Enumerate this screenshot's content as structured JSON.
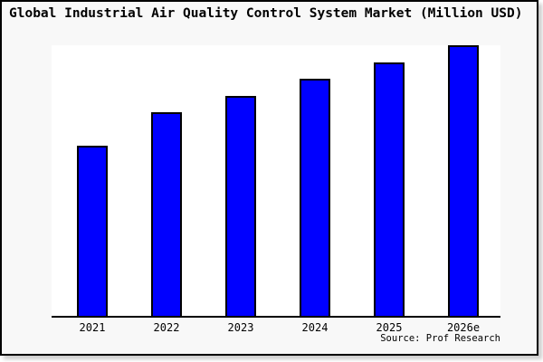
{
  "title": "Global Industrial Air Quality Control System Market (Million USD)",
  "source_credit": "Source: Prof Research",
  "colors": {
    "bar_fill": "#0000ff",
    "bar_border": "#000000",
    "plot_background": "#ffffff",
    "card_background": "#f8f8f8",
    "frame": "#000000",
    "text": "#000000"
  },
  "chart_data": {
    "type": "bar",
    "title": "Global Industrial Air Quality Control System Market (Million USD)",
    "categories": [
      "2021",
      "2022",
      "2023",
      "2024",
      "2025",
      "2026e"
    ],
    "values": [
      62.8,
      75.1,
      81.4,
      87.7,
      93.7,
      100
    ],
    "value_units": "relative bar height, normalized to 2026e = 100 (no y-axis scale shown in image)",
    "xlabel": "",
    "ylabel": "",
    "ylim": [
      0,
      100
    ],
    "grid": false,
    "legend": false,
    "y_axis_shown": false,
    "source": "Source: Prof Research"
  }
}
